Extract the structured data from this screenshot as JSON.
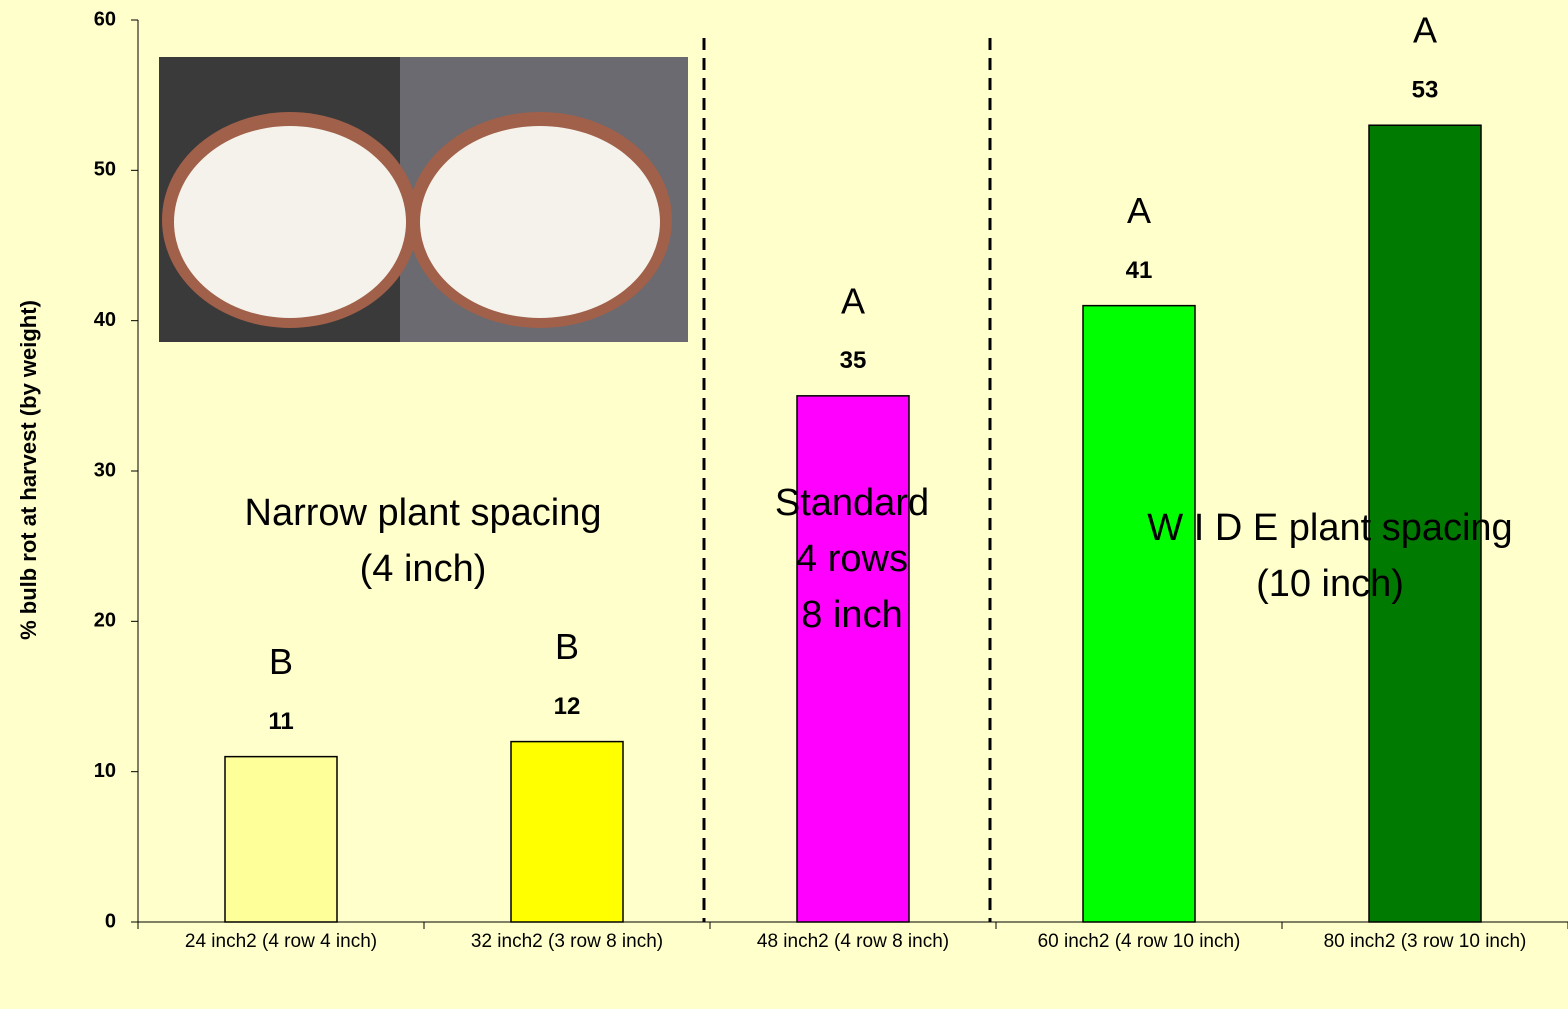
{
  "chart_data": {
    "type": "bar",
    "y_label": "% bulb rot at harvest (by weight)",
    "categories": [
      "24 inch2 (4 row 4 inch)",
      "32 inch2 (3 row 8 inch)",
      "48 inch2 (4 row 8 inch)",
      "60 inch2 (4 row 10 inch)",
      "80 inch2 (3 row 10 inch)"
    ],
    "values": [
      11,
      12,
      35,
      41,
      53
    ],
    "colors": [
      "#ffff99",
      "#ffff00",
      "#ff00ff",
      "#00ff00",
      "#007a00"
    ],
    "letters": [
      "B",
      "B",
      "A",
      "A",
      "A"
    ],
    "annotations": [
      [
        "Narrow plant spacing",
        "(4 inch)"
      ],
      [
        "Standard",
        "4 rows",
        "8 inch"
      ],
      [
        "W I D E plant spacing",
        "(10 inch)"
      ]
    ],
    "ylim": [
      0,
      60
    ],
    "yticks": [
      0,
      10,
      20,
      30,
      40,
      50,
      60
    ]
  }
}
